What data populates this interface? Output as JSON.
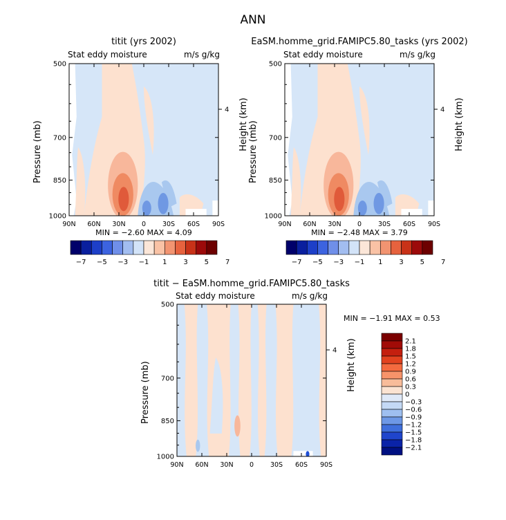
{
  "title": "ANN",
  "chart_data": [
    {
      "type": "heatmap",
      "title": "titit (yrs 2002)",
      "subtitle_left": "Stat eddy moisture",
      "subtitle_right": "m/s g/kg",
      "ylabel": "Pressure (mb)",
      "ylabel_right": "Height (km)",
      "x_ticks": [
        "90N",
        "60N",
        "30N",
        "0",
        "30S",
        "60S",
        "90S"
      ],
      "y_ticks": [
        "500",
        "700",
        "850",
        "1000"
      ],
      "y_right_ticks": [
        "4"
      ],
      "stats": "MIN =  −2.60   MAX =    4.09",
      "min": -2.6,
      "max": 4.09,
      "colorbar_labels": [
        "−7",
        "−5",
        "−3",
        "−1",
        "1",
        "3",
        "5",
        "7"
      ]
    },
    {
      "type": "heatmap",
      "title": "EaSM.homme_grid.FAMIPC5.80_tasks (yrs 2002)",
      "subtitle_left": "Stat eddy moisture",
      "subtitle_right": "m/s g/kg",
      "ylabel": "Pressure (mb)",
      "ylabel_right": "Height (km)",
      "x_ticks": [
        "90N",
        "60N",
        "30N",
        "0",
        "30S",
        "60S",
        "90S"
      ],
      "y_ticks": [
        "500",
        "700",
        "850",
        "1000"
      ],
      "y_right_ticks": [
        "4"
      ],
      "stats": "MIN =  −2.48   MAX =    3.79",
      "min": -2.48,
      "max": 3.79,
      "colorbar_labels": [
        "−7",
        "−5",
        "−3",
        "−1",
        "1",
        "3",
        "5",
        "7"
      ]
    },
    {
      "type": "heatmap",
      "title": "titit − EaSM.homme_grid.FAMIPC5.80_tasks",
      "subtitle_left": "Stat eddy moisture",
      "subtitle_right": "m/s g/kg",
      "ylabel": "Pressure (mb)",
      "ylabel_right": "Height (km)",
      "x_ticks": [
        "90N",
        "60N",
        "30N",
        "0",
        "30S",
        "60S",
        "90S"
      ],
      "y_ticks": [
        "500",
        "700",
        "850",
        "1000"
      ],
      "y_right_ticks": [
        "4"
      ],
      "stats": "MIN =  −1.91   MAX =    0.53",
      "min": -1.91,
      "max": 0.53,
      "colorbar_labels": [
        "2.1",
        "1.8",
        "1.5",
        "1.2",
        "0.9",
        "0.6",
        "0.3",
        "0",
        "−0.3",
        "−0.6",
        "−0.9",
        "−1.2",
        "−1.5",
        "−1.8",
        "−2.1"
      ]
    }
  ],
  "colors": {
    "pos_light": "#fde1cf",
    "pos_mid": "#f8b79b",
    "pos_strong": "#ef8a62",
    "pos_dark": "#e05a3a",
    "neg_light": "#d6e6f8",
    "neg_mid": "#a9c8ef",
    "neg_strong": "#6f98e3",
    "neg_dark": "#1e4fd6",
    "bar_top": [
      "#00006a",
      "#0a1f9e",
      "#1d3fc8",
      "#3c63e0",
      "#6f8fe9",
      "#a2bdf0",
      "#d2e3f8",
      "#fbe6d8",
      "#f9c2a5",
      "#f29471",
      "#e6623e",
      "#c83218",
      "#9c0a0a",
      "#6d0000"
    ],
    "bar_bottom": [
      "#7b0000",
      "#a10b07",
      "#c41f0f",
      "#e2421f",
      "#f46a3f",
      "#f7936a",
      "#f8bc9a",
      "#fbe3d2",
      "#dfe9f8",
      "#c4d9f5",
      "#9ebff0",
      "#6d98e6",
      "#3f6fdc",
      "#1f45cc",
      "#0a23a8",
      "#001082"
    ]
  }
}
